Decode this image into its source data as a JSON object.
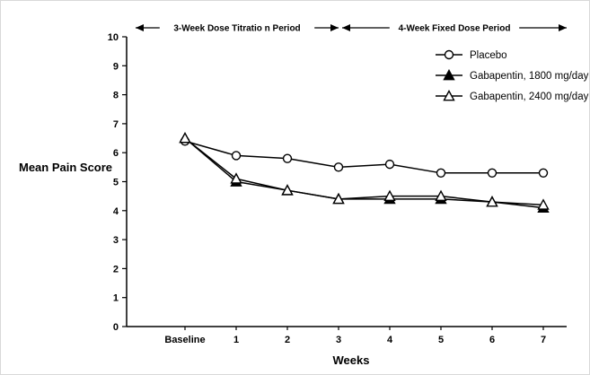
{
  "chart_data": {
    "type": "line",
    "title": "",
    "xlabel": "Weeks",
    "ylabel": "Mean Pain Score",
    "ylim": [
      0,
      10
    ],
    "ytick_step": 1,
    "grid": false,
    "legend_position": "top-right",
    "categories": [
      "Baseline",
      "1",
      "2",
      "3",
      "4",
      "5",
      "6",
      "7"
    ],
    "series": [
      {
        "name": "Placebo",
        "marker": "circle-open",
        "values": [
          6.4,
          5.9,
          5.8,
          5.5,
          5.6,
          5.3,
          5.3,
          5.3
        ]
      },
      {
        "name": "Gabapentin, 1800 mg/day",
        "marker": "triangle-filled",
        "values": [
          6.5,
          5.0,
          4.7,
          4.4,
          4.4,
          4.4,
          4.3,
          4.1
        ]
      },
      {
        "name": "Gabapentin, 2400 mg/day",
        "marker": "triangle-open",
        "values": [
          6.5,
          5.1,
          4.7,
          4.4,
          4.5,
          4.5,
          4.3,
          4.2
        ]
      }
    ],
    "annotations": [
      {
        "label": "3-Week Dose Titratio n Period",
        "span": [
          "start",
          "3"
        ]
      },
      {
        "label": "4-Week Fixed Dose Period",
        "span": [
          "3",
          "end"
        ]
      }
    ],
    "line_color": "#000000",
    "background_color": "#ffffff"
  }
}
